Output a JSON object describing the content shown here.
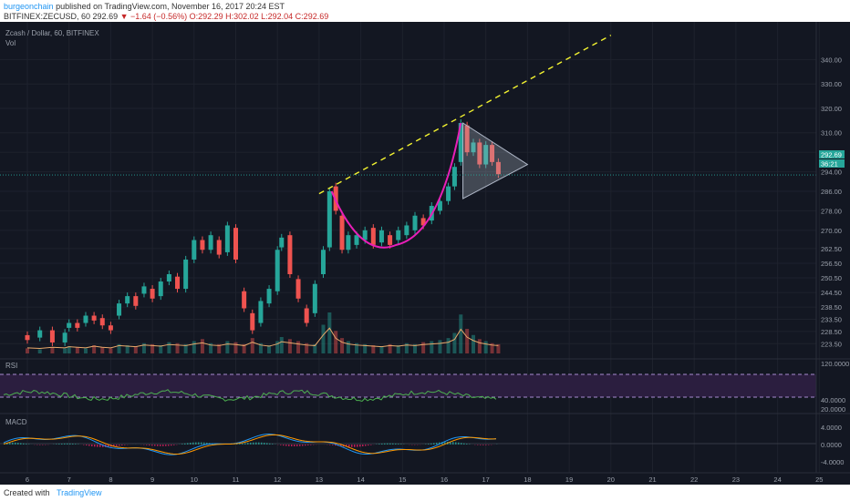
{
  "header": {
    "author": "burgeonchain",
    "published": "published on TradingView.com, November 16, 2017 20:24 EST",
    "symbol_line_prefix": "BITFINEX:ZECUSD, 60",
    "price": "292.69",
    "change": "−1.64 (−0.56%)",
    "ohlc": "O:292.29 H:302.02 L:292.04 C:292.69"
  },
  "chart_title": "Zcash / Dollar, 60, BITFINEX",
  "vol_label": "Vol",
  "rsi_label": "RSI",
  "macd_label": "MACD",
  "price_badge": "292.69",
  "price_badge2": "36:21",
  "footer": {
    "created": "Created with",
    "brand": "TradingView"
  },
  "colors": {
    "up": "#26a69a",
    "down": "#ef5350",
    "accent": "#2196f3",
    "trend": "#f2f230",
    "cup": "#e91eb8",
    "triangle": "#b0b8c8"
  },
  "chart_data": [
    {
      "type": "candlestick",
      "title": "Zcash / Dollar, 60, BITFINEX",
      "x_ticks": [
        "6",
        "7",
        "8",
        "9",
        "10",
        "11",
        "12",
        "13",
        "14",
        "15",
        "16",
        "17",
        "18",
        "19",
        "20",
        "21",
        "22",
        "23",
        "24",
        "25"
      ],
      "y_ticks": [
        "340.00",
        "330.00",
        "320.00",
        "310.00",
        "302.00",
        "294.00",
        "286.00",
        "278.00",
        "270.00",
        "262.50",
        "256.50",
        "250.50",
        "244.50",
        "238.50",
        "233.50",
        "228.50",
        "223.50"
      ],
      "ylim": [
        221,
        348
      ],
      "annotations": [
        "ascending dashed resistance trendline",
        "cup formation",
        "symmetrical triangle"
      ],
      "candles": [
        [
          6.0,
          227,
          225
        ],
        [
          6.3,
          226,
          229
        ],
        [
          6.6,
          229,
          224
        ],
        [
          6.9,
          224,
          228
        ],
        [
          7.0,
          230,
          232
        ],
        [
          7.2,
          232,
          230
        ],
        [
          7.4,
          232,
          235
        ],
        [
          7.6,
          235,
          233
        ],
        [
          7.8,
          234,
          231
        ],
        [
          8.0,
          231,
          229
        ],
        [
          8.2,
          235,
          240
        ],
        [
          8.4,
          240,
          243
        ],
        [
          8.6,
          243,
          239
        ],
        [
          8.8,
          244,
          247
        ],
        [
          9.0,
          246,
          242
        ],
        [
          9.2,
          243,
          249
        ],
        [
          9.4,
          249,
          252
        ],
        [
          9.6,
          251,
          246
        ],
        [
          9.8,
          246,
          258
        ],
        [
          10.0,
          258,
          266
        ],
        [
          10.2,
          266,
          262
        ],
        [
          10.4,
          262,
          268
        ],
        [
          10.6,
          266,
          260
        ],
        [
          10.8,
          261,
          272
        ],
        [
          11.0,
          271,
          258
        ],
        [
          11.2,
          245,
          238
        ],
        [
          11.4,
          236,
          229
        ],
        [
          11.6,
          232,
          241
        ],
        [
          11.8,
          240,
          246
        ],
        [
          12.0,
          245,
          262
        ],
        [
          12.1,
          263,
          267
        ],
        [
          12.3,
          268,
          252
        ],
        [
          12.5,
          250,
          242
        ],
        [
          12.7,
          238,
          232
        ],
        [
          12.9,
          236,
          248
        ],
        [
          13.1,
          252,
          262
        ],
        [
          13.25,
          263,
          286
        ],
        [
          13.4,
          288,
          278
        ],
        [
          13.55,
          276,
          262
        ],
        [
          13.7,
          262,
          268
        ],
        [
          13.9,
          264,
          268
        ],
        [
          14.1,
          266,
          270
        ],
        [
          14.3,
          271,
          264
        ],
        [
          14.5,
          265,
          270
        ],
        [
          14.7,
          268,
          264
        ],
        [
          14.9,
          266,
          270
        ],
        [
          15.1,
          268,
          272
        ],
        [
          15.3,
          270,
          276
        ],
        [
          15.5,
          275,
          272
        ],
        [
          15.7,
          274,
          280
        ],
        [
          15.9,
          278,
          282
        ],
        [
          16.1,
          282,
          288
        ],
        [
          16.25,
          288,
          296
        ],
        [
          16.4,
          298,
          314
        ],
        [
          16.55,
          313,
          302
        ],
        [
          16.7,
          302,
          306
        ],
        [
          16.85,
          306,
          297
        ],
        [
          17.0,
          297,
          305
        ],
        [
          17.15,
          305,
          298
        ],
        [
          17.3,
          298,
          293
        ]
      ],
      "volume": [
        5,
        4,
        6,
        5,
        7,
        6,
        5,
        8,
        6,
        5,
        9,
        8,
        7,
        10,
        9,
        8,
        11,
        10,
        9,
        12,
        14,
        10,
        9,
        12,
        11,
        9,
        15,
        10,
        8,
        12,
        16,
        14,
        12,
        10,
        9,
        28,
        40,
        22,
        15,
        12,
        10,
        9,
        8,
        7,
        9,
        8,
        10,
        9,
        11,
        12,
        13,
        15,
        20,
        38,
        24,
        18,
        14,
        12,
        10,
        9
      ],
      "rsi_ylim": [
        20,
        120
      ],
      "rsi_ticks": [
        "120.0000",
        "40.0000",
        "20.0000"
      ],
      "rsi_bands": [
        70,
        30
      ],
      "macd_ylim": [
        -5,
        5
      ],
      "macd_ticks": [
        "4.0000",
        "0.0000",
        "-4.0000"
      ]
    }
  ]
}
